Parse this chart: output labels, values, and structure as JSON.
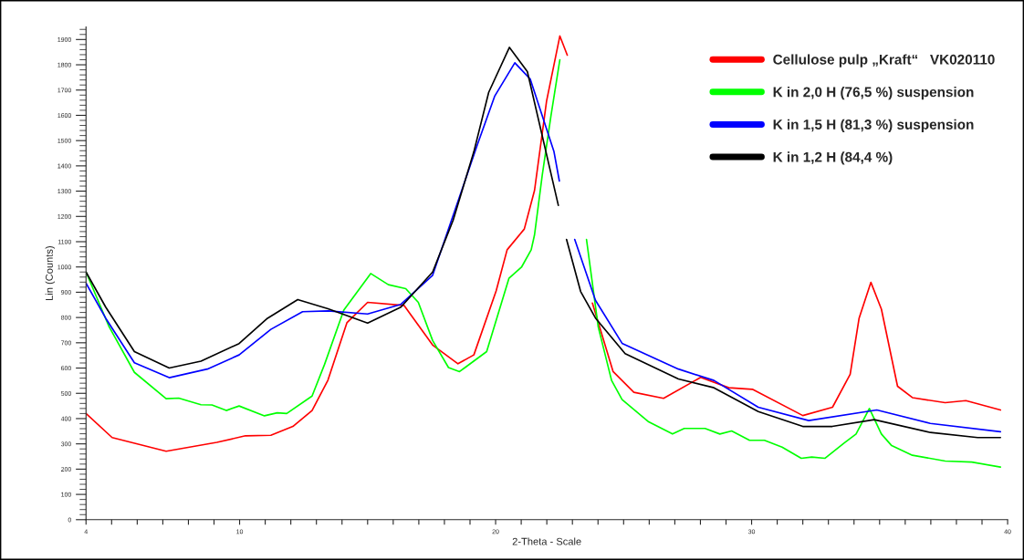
{
  "chart_data": {
    "type": "line",
    "xlabel": "2-Theta - Scale",
    "ylabel": "Lin (Counts)",
    "xlim": [
      4,
      40
    ],
    "xticks": [
      4,
      {
        "value": 5,
        "label": null
      },
      {
        "value": 6,
        "label": null
      },
      {
        "value": 7,
        "label": null
      },
      {
        "value": 8,
        "label": null
      },
      {
        "value": 9,
        "label": null
      },
      10,
      {
        "value": 11,
        "label": null
      },
      {
        "value": 12,
        "label": null
      },
      {
        "value": 13,
        "label": null
      },
      {
        "value": 14,
        "label": null
      },
      {
        "value": 15,
        "label": null
      },
      {
        "value": 16,
        "label": null
      },
      {
        "value": 17,
        "label": null
      },
      {
        "value": 18,
        "label": null
      },
      {
        "value": 19,
        "label": null
      },
      20,
      {
        "value": 21,
        "label": null
      },
      {
        "value": 22,
        "label": null
      },
      {
        "value": 23,
        "label": null
      },
      {
        "value": 24,
        "label": null
      },
      {
        "value": 25,
        "label": null
      },
      {
        "value": 26,
        "label": null
      },
      {
        "value": 27,
        "label": null
      },
      {
        "value": 28,
        "label": null
      },
      {
        "value": 29,
        "label": null
      },
      30,
      {
        "value": 31,
        "label": null
      },
      {
        "value": 32,
        "label": null
      },
      {
        "value": 33,
        "label": null
      },
      {
        "value": 34,
        "label": null
      },
      {
        "value": 35,
        "label": null
      },
      {
        "value": 36,
        "label": null
      },
      {
        "value": 37,
        "label": null
      },
      {
        "value": 38,
        "label": null
      },
      {
        "value": 39,
        "label": null
      },
      40
    ],
    "ylim": [
      0,
      1950
    ],
    "yticks": [
      0,
      100,
      200,
      300,
      400,
      500,
      600,
      700,
      800,
      900,
      1000,
      1100,
      1200,
      1300,
      1400,
      1500,
      1600,
      1700,
      1800,
      1900
    ],
    "grid": false,
    "legend": "top right",
    "marker": "none",
    "line_style": "solid",
    "series": [
      {
        "name": "Cellulose pulp „Kraft“   VK020110",
        "color": "#ff0000",
        "x": [
          4.0,
          5.02,
          7.13,
          9.11,
          10.23,
          11.22,
          12.08,
          12.83,
          13.45,
          14.19,
          15.0,
          16.42,
          17.54,
          18.53,
          19.15,
          20.02,
          20.45,
          21.12,
          21.52,
          21.99,
          22.51,
          22.8,
          23.3,
          23.78,
          24.59,
          25.4,
          26.56,
          28.01,
          29.11,
          30.03,
          32.0,
          33.16,
          33.85,
          34.2,
          34.66,
          35.07,
          35.7,
          36.28,
          37.56,
          38.37,
          39.72
        ],
        "values": [
          420,
          325,
          271,
          306,
          332,
          334,
          369,
          432,
          552,
          779,
          860,
          848,
          691,
          617,
          652,
          905,
          1068,
          1150,
          1303,
          1656,
          1914,
          1838,
          null,
          857,
          586,
          504,
          480,
          563,
          522,
          516,
          412,
          445,
          575,
          798,
          939,
          833,
          528,
          483,
          463,
          471,
          434
        ]
      },
      {
        "name": "K in 2,0 H (76,5 %) suspension",
        "color": "#00ff00",
        "x": [
          4.0,
          4.89,
          5.89,
          7.13,
          7.62,
          8.49,
          8.92,
          9.48,
          9.98,
          10.97,
          11.47,
          11.84,
          12.83,
          13.32,
          14.07,
          15.12,
          15.81,
          16.49,
          16.98,
          17.54,
          18.16,
          18.59,
          19.65,
          20.52,
          21.01,
          21.39,
          21.52,
          21.82,
          22.16,
          22.51,
          23.0,
          23.55,
          24.01,
          24.53,
          24.94,
          25.98,
          26.91,
          27.37,
          28.18,
          28.76,
          29.22,
          29.92,
          30.5,
          31.19,
          31.94,
          32.35,
          32.87,
          33.62,
          34.08,
          34.6,
          35.07,
          35.47,
          36.28,
          37.56,
          38.6,
          39.72
        ],
        "values": [
          980,
          766,
          583,
          479,
          481,
          455,
          454,
          432,
          450,
          411,
          423,
          420,
          489,
          615,
          829,
          974,
          930,
          914,
          860,
          709,
          602,
          586,
          665,
          955,
          999,
          1068,
          1127,
          1362,
          1597,
          1820,
          null,
          1109,
          762,
          551,
          475,
          387,
          339,
          361,
          361,
          339,
          351,
          314,
          314,
          287,
          243,
          248,
          243,
          304,
          339,
          440,
          339,
          293,
          255,
          232,
          228,
          208
        ]
      },
      {
        "name": "K in 1,5 H (81,3 %) suspension",
        "color": "#0000ff",
        "x": [
          4.0,
          4.77,
          5.89,
          7.25,
          8.74,
          9.98,
          11.22,
          12.46,
          13.45,
          15.0,
          16.3,
          17.54,
          19.27,
          19.96,
          20.75,
          21.35,
          22.28,
          22.49,
          22.8,
          23.09,
          23.9,
          24.94,
          27.14,
          28.53,
          30.26,
          32.23,
          34.89,
          36.98,
          39.72
        ],
        "values": [
          936,
          797,
          621,
          562,
          596,
          652,
          753,
          823,
          826,
          814,
          852,
          967,
          1479,
          1675,
          1808,
          1744,
          1456,
          1340,
          null,
          1109,
          868,
          698,
          596,
          551,
          445,
          392,
          434,
          381,
          348
        ]
      },
      {
        "name": "K in 1,2 H (84,4 %)",
        "color": "#000000",
        "x": [
          4.0,
          4.77,
          5.89,
          7.25,
          8.49,
          9.98,
          11.09,
          12.27,
          13.45,
          15.0,
          16.3,
          17.54,
          18.34,
          19.15,
          19.73,
          20.54,
          21.24,
          22.45,
          22.6,
          22.77,
          23.32,
          23.9,
          25.06,
          27.14,
          28.53,
          30.26,
          32.0,
          33.15,
          34.79,
          36.98,
          38.83,
          39.72
        ],
        "values": [
          980,
          841,
          665,
          600,
          627,
          697,
          797,
          871,
          835,
          778,
          841,
          980,
          1185,
          1456,
          1691,
          1869,
          1773,
          1244,
          null,
          1109,
          903,
          798,
          657,
          557,
          522,
          428,
          369,
          369,
          396,
          345,
          325,
          325
        ]
      }
    ]
  }
}
